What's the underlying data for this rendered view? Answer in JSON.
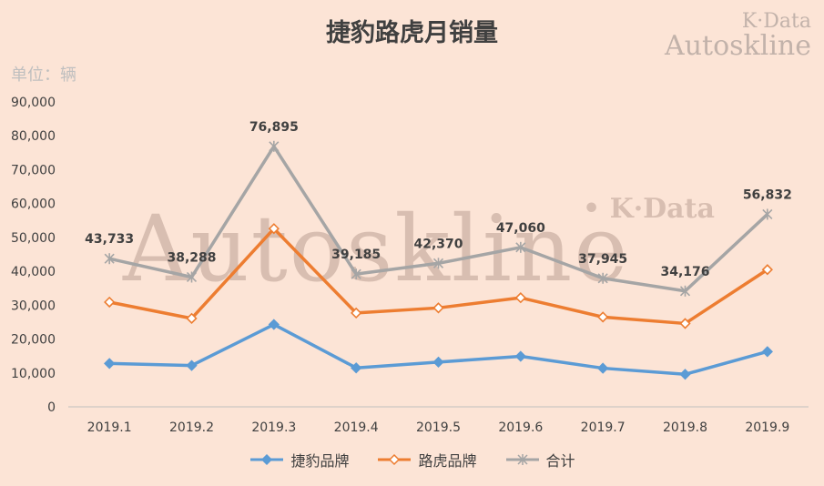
{
  "title": "捷豹路虎月销量",
  "unit_label": "单位：辆",
  "watermark": {
    "corner_line1": "K·Data",
    "corner_line2": "Autoskline",
    "center_big": "Autoskline",
    "center_mid": "• K·Data"
  },
  "chart_data": {
    "type": "line",
    "categories": [
      "2019.1",
      "2019.2",
      "2019.3",
      "2019.4",
      "2019.5",
      "2019.6",
      "2019.7",
      "2019.8",
      "2019.9"
    ],
    "series": [
      {
        "name": "捷豹品牌",
        "color": "#5b9bd5",
        "marker": "diamond-filled",
        "values": [
          12800,
          12200,
          24300,
          11500,
          13200,
          14900,
          11400,
          9600,
          16300
        ]
      },
      {
        "name": "路虎品牌",
        "color": "#ed7d31",
        "marker": "diamond-open",
        "values": [
          30900,
          26100,
          52600,
          27700,
          29200,
          32200,
          26500,
          24600,
          40500
        ]
      },
      {
        "name": "合计",
        "color": "#a5a5a5",
        "marker": "star",
        "values": [
          43733,
          38288,
          76895,
          39185,
          42370,
          47060,
          37945,
          34176,
          56832
        ],
        "data_labels": [
          "43,733",
          "38,288",
          "76,895",
          "39,185",
          "42,370",
          "47,060",
          "37,945",
          "34,176",
          "56,832"
        ]
      }
    ],
    "ylim": [
      0,
      90000
    ],
    "yticks": [
      0,
      10000,
      20000,
      30000,
      40000,
      50000,
      60000,
      70000,
      80000,
      90000
    ],
    "ytick_labels": [
      "0",
      "10,000",
      "20,000",
      "30,000",
      "40,000",
      "50,000",
      "60,000",
      "70,000",
      "80,000",
      "90,000"
    ],
    "grid": false,
    "legend": "bottom"
  }
}
